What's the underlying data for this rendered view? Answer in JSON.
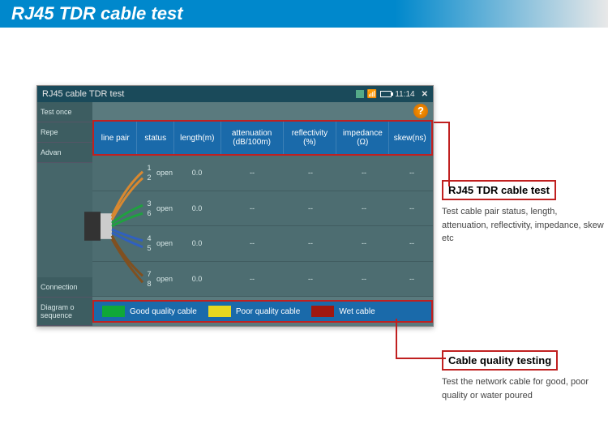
{
  "page": {
    "title": "RJ45 TDR cable test"
  },
  "titlebar": {
    "title": "RJ45 cable TDR test",
    "time": "11:14"
  },
  "sidebar": {
    "items": [
      {
        "label": "Test once"
      },
      {
        "label": "Repe"
      },
      {
        "label": "Advan"
      },
      {
        "label": "Connection"
      },
      {
        "label": "Diagram o\nsequence"
      }
    ]
  },
  "columns": [
    {
      "label": "line pair",
      "w": 54
    },
    {
      "label": "status",
      "w": 46
    },
    {
      "label": "length(m)",
      "w": 58
    },
    {
      "label": "attenuation (dB/100m)",
      "w": 78
    },
    {
      "label": "reflectivity (%)",
      "w": 66
    },
    {
      "label": "impedance (Ω)",
      "w": 66
    },
    {
      "label": "skew(ns)",
      "w": 52
    }
  ],
  "rows": [
    {
      "pair": [
        1,
        2
      ],
      "status": "open",
      "length": "0.0",
      "atten": "--",
      "refl": "--",
      "imp": "--",
      "skew": "--",
      "color": "#d88830"
    },
    {
      "pair": [
        3,
        6
      ],
      "status": "open",
      "length": "0.0",
      "atten": "--",
      "refl": "--",
      "imp": "--",
      "skew": "--",
      "color": "#20a040"
    },
    {
      "pair": [
        4,
        5
      ],
      "status": "open",
      "length": "0.0",
      "atten": "--",
      "refl": "--",
      "imp": "--",
      "skew": "--",
      "color": "#3060c0"
    },
    {
      "pair": [
        7,
        8
      ],
      "status": "open",
      "length": "0.0",
      "atten": "--",
      "refl": "--",
      "imp": "--",
      "skew": "--",
      "color": "#805020"
    }
  ],
  "legend": {
    "items": [
      {
        "color": "#10a838",
        "label": "Good quality cable"
      },
      {
        "color": "#e8d820",
        "label": "Poor quality cable"
      },
      {
        "color": "#a01810",
        "label": "Wet cable"
      }
    ]
  },
  "callouts": {
    "top": {
      "title": "RJ45 TDR cable test",
      "desc": "Test cable pair status, length, attenuation, reflectivity, impedance, skew etc"
    },
    "bottom": {
      "title": "Cable quality testing",
      "desc": "Test the network cable for good, poor quality or water poured"
    }
  },
  "colors": {
    "highlight_border": "#c02020",
    "header_bg": "#1a6aaa",
    "app_bg": "#5a7a7e"
  }
}
